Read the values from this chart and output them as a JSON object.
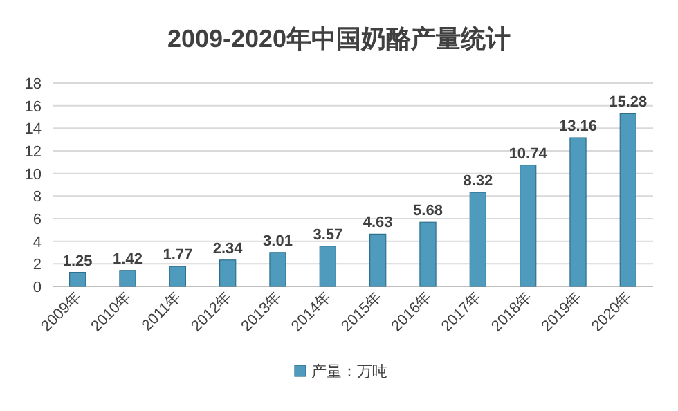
{
  "chart_data": {
    "type": "bar",
    "title": "2009-2020年中国奶酪产量统计",
    "categories": [
      "2009年",
      "2010年",
      "2011年",
      "2012年",
      "2013年",
      "2014年",
      "2015年",
      "2016年",
      "2017年",
      "2018年",
      "2019年",
      "2020年"
    ],
    "series": [
      {
        "name": "产量：万吨",
        "color": "#4f9bbd",
        "values": [
          1.25,
          1.42,
          1.77,
          2.34,
          3.01,
          3.57,
          4.63,
          5.68,
          8.32,
          10.74,
          13.16,
          15.28
        ]
      }
    ],
    "ylim": [
      0,
      18
    ],
    "yticks": [
      0,
      2,
      4,
      6,
      8,
      10,
      12,
      14,
      16,
      18
    ],
    "grid": "y",
    "legend": "bottom",
    "data_labels": true
  }
}
